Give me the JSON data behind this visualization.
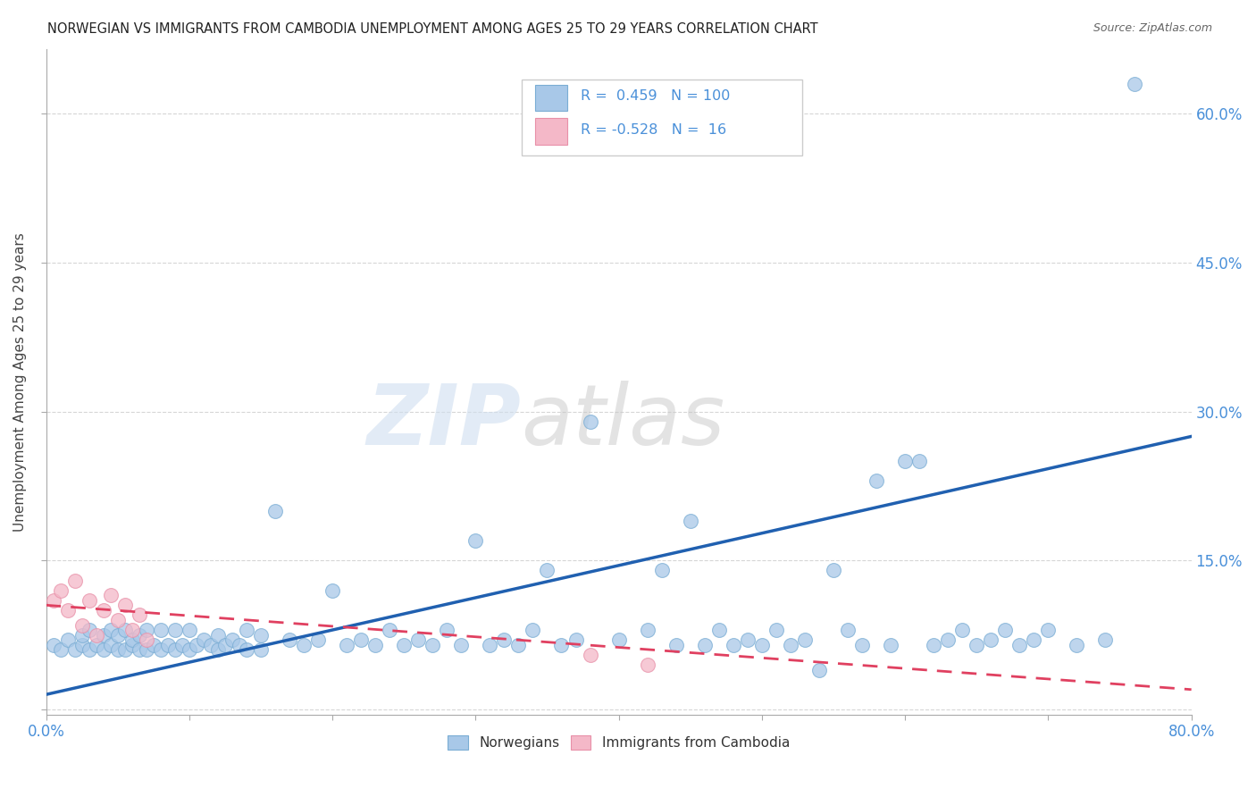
{
  "title": "NORWEGIAN VS IMMIGRANTS FROM CAMBODIA UNEMPLOYMENT AMONG AGES 25 TO 29 YEARS CORRELATION CHART",
  "source": "Source: ZipAtlas.com",
  "ylabel_label": "Unemployment Among Ages 25 to 29 years",
  "watermark_zip": "ZIP",
  "watermark_atlas": "atlas",
  "norwegian_R": 0.459,
  "norwegian_N": 100,
  "cambodia_R": -0.528,
  "cambodia_N": 16,
  "x_min": 0.0,
  "x_max": 0.8,
  "y_min": -0.005,
  "y_max": 0.665,
  "norwegian_color": "#a8c8e8",
  "norwegian_edge_color": "#7aadd4",
  "cambodia_color": "#f4b8c8",
  "cambodia_edge_color": "#e890a8",
  "norwegian_line_color": "#2060b0",
  "cambodia_line_color": "#e04060",
  "background_color": "#ffffff",
  "title_color": "#222222",
  "axis_label_color": "#444444",
  "tick_color": "#4a90d9",
  "right_tick_color": "#4a90d9",
  "grid_color": "#cccccc",
  "legend_edge_color": "#cccccc",
  "nor_x": [
    0.005,
    0.01,
    0.015,
    0.02,
    0.025,
    0.025,
    0.03,
    0.03,
    0.035,
    0.04,
    0.04,
    0.045,
    0.045,
    0.05,
    0.05,
    0.055,
    0.055,
    0.06,
    0.06,
    0.065,
    0.065,
    0.07,
    0.07,
    0.075,
    0.08,
    0.08,
    0.085,
    0.09,
    0.09,
    0.095,
    0.1,
    0.1,
    0.105,
    0.11,
    0.115,
    0.12,
    0.12,
    0.125,
    0.13,
    0.135,
    0.14,
    0.14,
    0.15,
    0.15,
    0.16,
    0.17,
    0.18,
    0.19,
    0.2,
    0.21,
    0.22,
    0.23,
    0.24,
    0.25,
    0.26,
    0.27,
    0.28,
    0.29,
    0.3,
    0.31,
    0.32,
    0.33,
    0.34,
    0.35,
    0.36,
    0.37,
    0.38,
    0.4,
    0.42,
    0.43,
    0.44,
    0.45,
    0.46,
    0.47,
    0.48,
    0.49,
    0.5,
    0.51,
    0.52,
    0.53,
    0.54,
    0.55,
    0.56,
    0.57,
    0.58,
    0.59,
    0.6,
    0.61,
    0.62,
    0.63,
    0.64,
    0.65,
    0.66,
    0.67,
    0.68,
    0.69,
    0.7,
    0.72,
    0.74,
    0.76
  ],
  "nor_y": [
    0.065,
    0.06,
    0.07,
    0.06,
    0.065,
    0.075,
    0.06,
    0.08,
    0.065,
    0.06,
    0.075,
    0.065,
    0.08,
    0.06,
    0.075,
    0.06,
    0.08,
    0.065,
    0.07,
    0.06,
    0.075,
    0.06,
    0.08,
    0.065,
    0.06,
    0.08,
    0.065,
    0.06,
    0.08,
    0.065,
    0.06,
    0.08,
    0.065,
    0.07,
    0.065,
    0.06,
    0.075,
    0.065,
    0.07,
    0.065,
    0.06,
    0.08,
    0.06,
    0.075,
    0.2,
    0.07,
    0.065,
    0.07,
    0.12,
    0.065,
    0.07,
    0.065,
    0.08,
    0.065,
    0.07,
    0.065,
    0.08,
    0.065,
    0.17,
    0.065,
    0.07,
    0.065,
    0.08,
    0.14,
    0.065,
    0.07,
    0.29,
    0.07,
    0.08,
    0.14,
    0.065,
    0.19,
    0.065,
    0.08,
    0.065,
    0.07,
    0.065,
    0.08,
    0.065,
    0.07,
    0.04,
    0.14,
    0.08,
    0.065,
    0.23,
    0.065,
    0.25,
    0.25,
    0.065,
    0.07,
    0.08,
    0.065,
    0.07,
    0.08,
    0.065,
    0.07,
    0.08,
    0.065,
    0.07,
    0.63
  ],
  "cam_x": [
    0.005,
    0.01,
    0.015,
    0.02,
    0.025,
    0.03,
    0.035,
    0.04,
    0.045,
    0.05,
    0.055,
    0.06,
    0.065,
    0.07,
    0.38,
    0.42
  ],
  "cam_y": [
    0.11,
    0.12,
    0.1,
    0.13,
    0.085,
    0.11,
    0.075,
    0.1,
    0.115,
    0.09,
    0.105,
    0.08,
    0.095,
    0.07,
    0.055,
    0.045
  ],
  "nor_line_x0": 0.0,
  "nor_line_y0": 0.015,
  "nor_line_x1": 0.8,
  "nor_line_y1": 0.275,
  "cam_line_x0": 0.0,
  "cam_line_y0": 0.105,
  "cam_line_x1": 0.8,
  "cam_line_y1": 0.02
}
